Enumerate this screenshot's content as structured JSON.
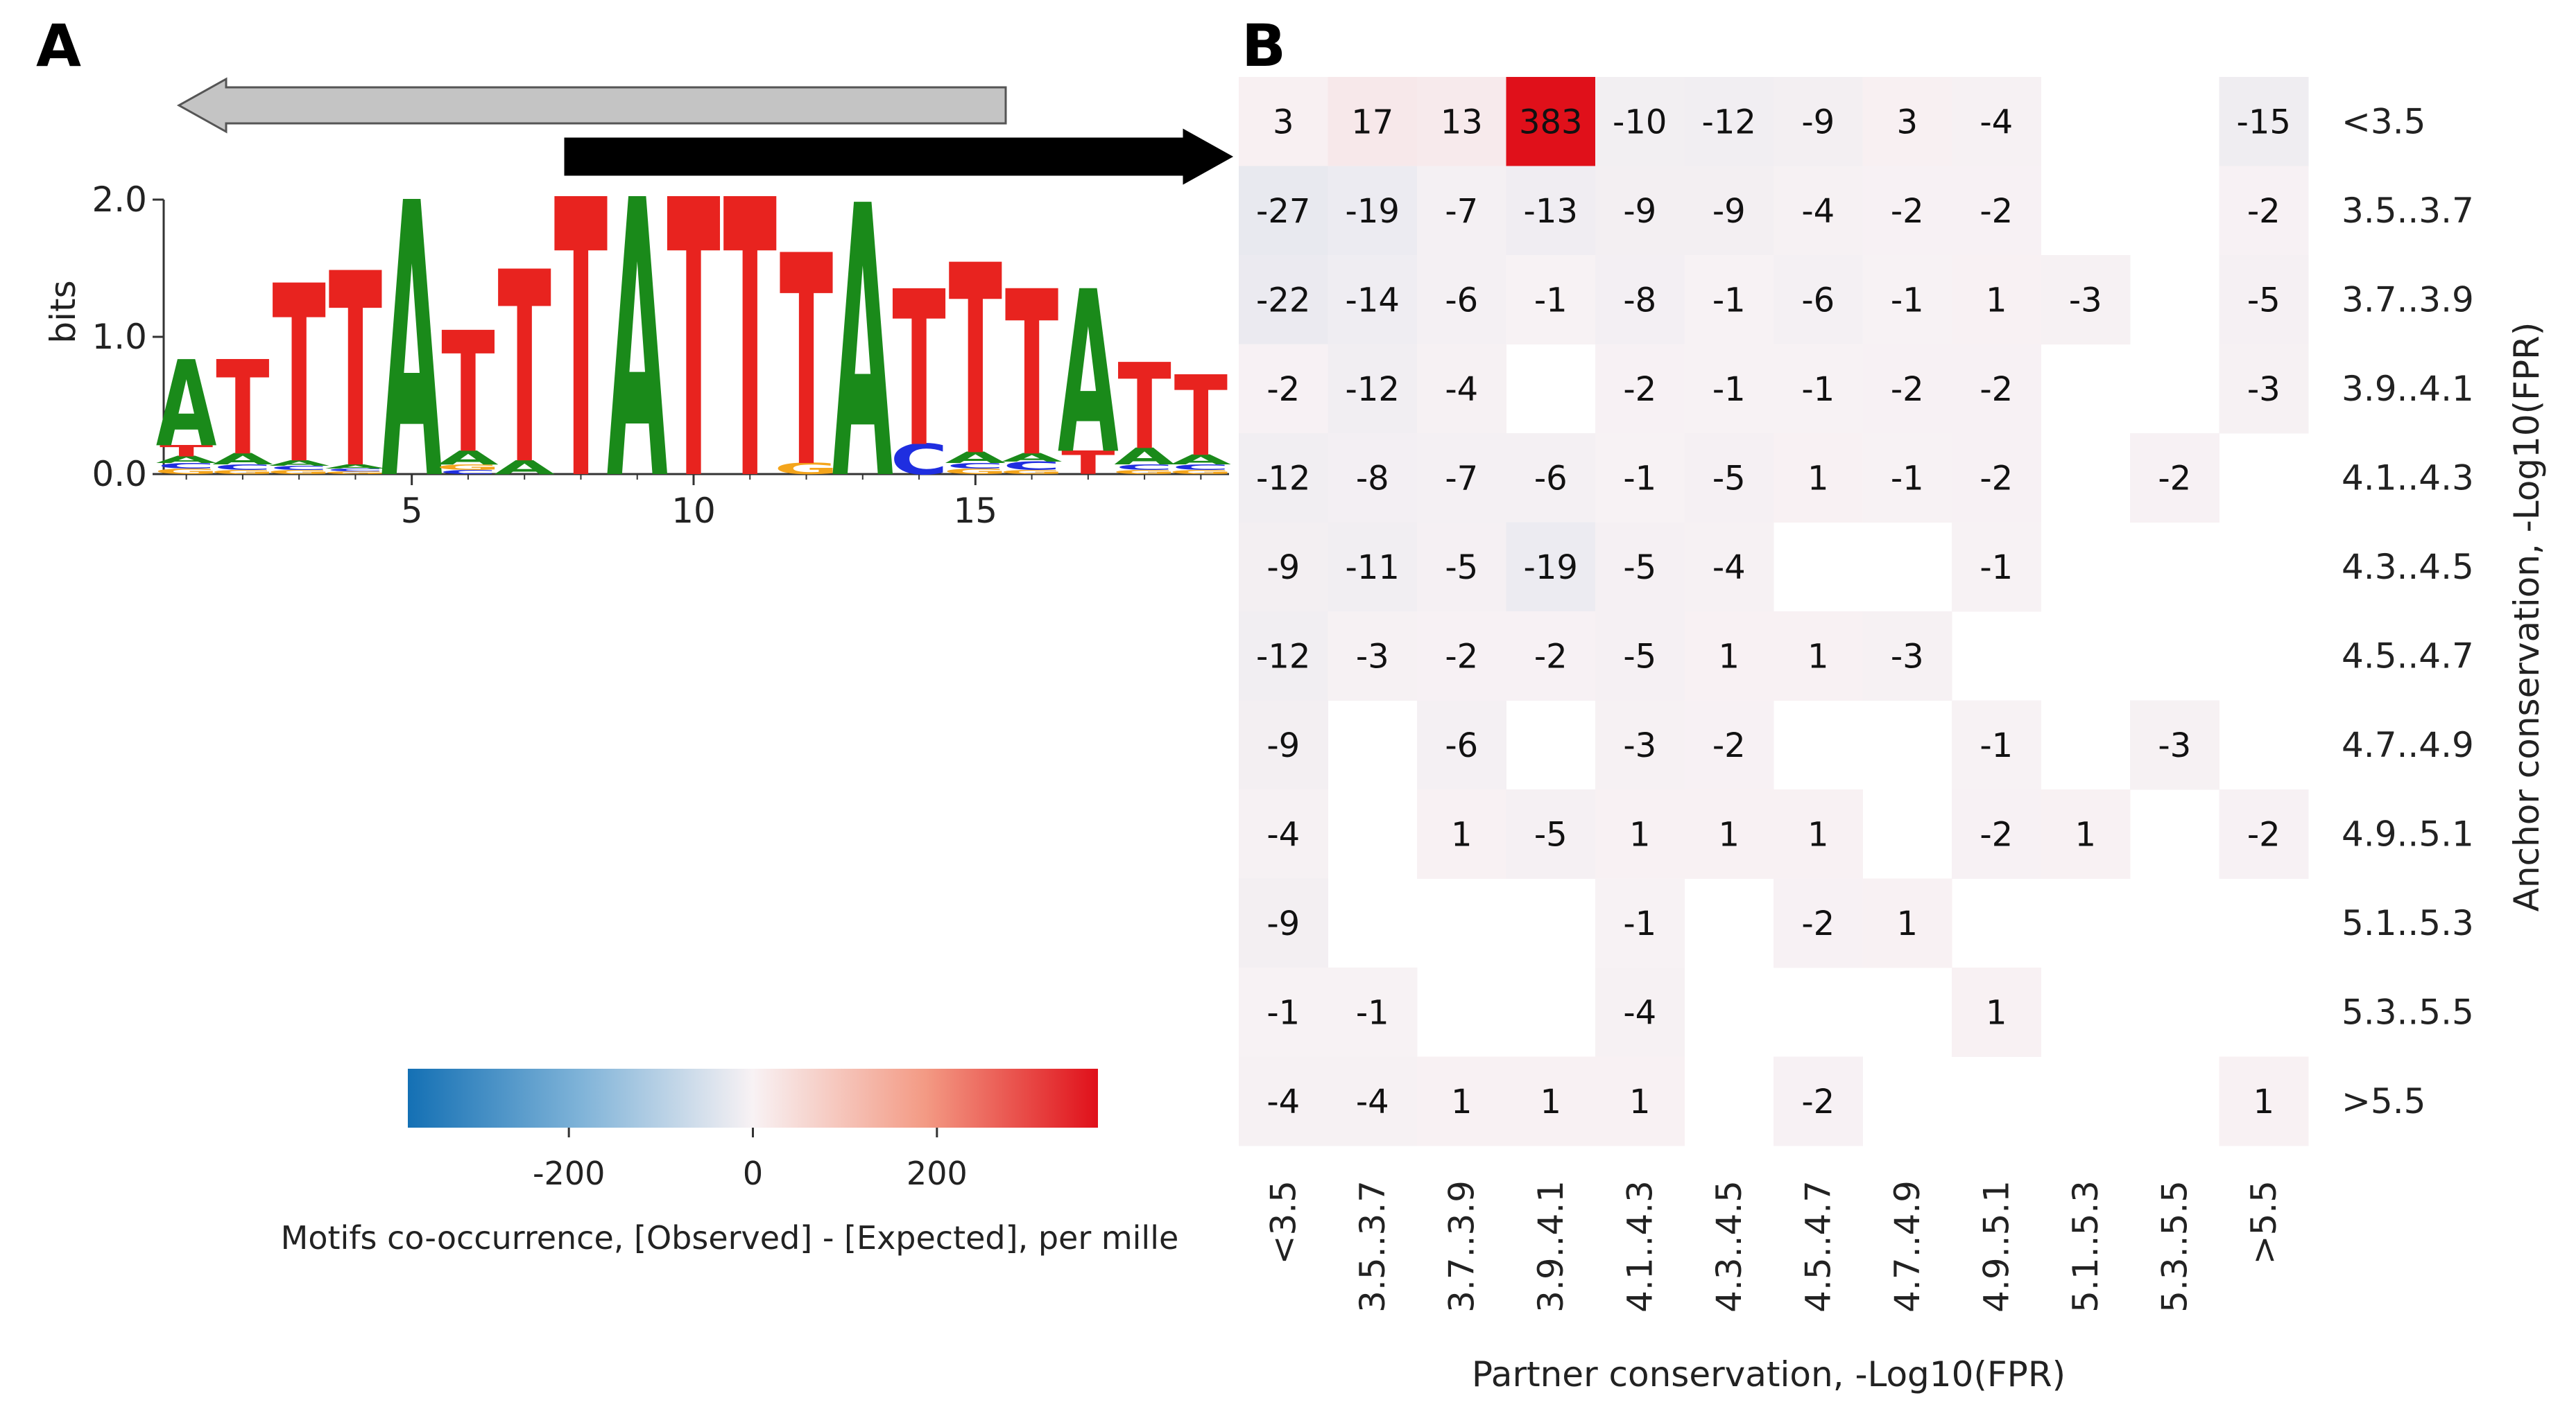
{
  "panel_labels": {
    "a": "A",
    "b": "B"
  },
  "chart_data": [
    {
      "type": "sequence-logo",
      "panel": "A",
      "ylabel": "bits",
      "ylim": [
        0,
        2.0
      ],
      "yticks": [
        "0.0",
        "1.0",
        "2.0"
      ],
      "xticks": [
        "5",
        "10",
        "15"
      ],
      "colors": {
        "A": "#1a8a1a",
        "T": "#e8231f",
        "C": "#1f2ee0",
        "G": "#f4a51c"
      },
      "arrows": [
        {
          "name": "reverse-arrow",
          "direction": "left",
          "color": "#c4c4c4",
          "from_pos": 16,
          "to_pos": 1
        },
        {
          "name": "forward-arrow",
          "direction": "right",
          "color": "#000000",
          "from_pos": 8,
          "to_pos": 19
        }
      ],
      "positions": [
        {
          "pos": 1,
          "stack": [
            [
              "G",
              0.04
            ],
            [
              "C",
              0.04
            ],
            [
              "A",
              0.05
            ],
            [
              "T",
              0.08
            ],
            [
              "A",
              0.62
            ]
          ]
        },
        {
          "pos": 2,
          "stack": [
            [
              "G",
              0.03
            ],
            [
              "C",
              0.04
            ],
            [
              "A",
              0.08
            ],
            [
              "T",
              0.68
            ]
          ]
        },
        {
          "pos": 3,
          "stack": [
            [
              "G",
              0.03
            ],
            [
              "C",
              0.03
            ],
            [
              "A",
              0.04
            ],
            [
              "T",
              1.28
            ]
          ]
        },
        {
          "pos": 4,
          "stack": [
            [
              "G",
              0.02
            ],
            [
              "C",
              0.02
            ],
            [
              "A",
              0.03
            ],
            [
              "T",
              1.4
            ]
          ]
        },
        {
          "pos": 5,
          "stack": [
            [
              "A",
              1.98
            ]
          ]
        },
        {
          "pos": 6,
          "stack": [
            [
              "C",
              0.03
            ],
            [
              "G",
              0.04
            ],
            [
              "A",
              0.1
            ],
            [
              "T",
              0.87
            ]
          ]
        },
        {
          "pos": 7,
          "stack": [
            [
              "A",
              0.1
            ],
            [
              "T",
              1.38
            ]
          ]
        },
        {
          "pos": 8,
          "stack": [
            [
              "T",
              2.0
            ]
          ]
        },
        {
          "pos": 9,
          "stack": [
            [
              "A",
              2.0
            ]
          ]
        },
        {
          "pos": 10,
          "stack": [
            [
              "T",
              2.0
            ]
          ]
        },
        {
          "pos": 11,
          "stack": [
            [
              "T",
              2.0
            ]
          ]
        },
        {
          "pos": 12,
          "stack": [
            [
              "G",
              0.08
            ],
            [
              "T",
              1.52
            ]
          ]
        },
        {
          "pos": 13,
          "stack": [
            [
              "A",
              1.96
            ]
          ]
        },
        {
          "pos": 14,
          "stack": [
            [
              "C",
              0.22
            ],
            [
              "T",
              1.12
            ]
          ]
        },
        {
          "pos": 15,
          "stack": [
            [
              "G",
              0.04
            ],
            [
              "C",
              0.04
            ],
            [
              "A",
              0.08
            ],
            [
              "T",
              1.37
            ]
          ]
        },
        {
          "pos": 16,
          "stack": [
            [
              "G",
              0.03
            ],
            [
              "C",
              0.06
            ],
            [
              "A",
              0.06
            ],
            [
              "T",
              1.19
            ]
          ]
        },
        {
          "pos": 17,
          "stack": [
            [
              "T",
              0.17
            ],
            [
              "A",
              1.17
            ]
          ]
        },
        {
          "pos": 18,
          "stack": [
            [
              "G",
              0.03
            ],
            [
              "C",
              0.04
            ],
            [
              "A",
              0.12
            ],
            [
              "T",
              0.62
            ]
          ]
        },
        {
          "pos": 19,
          "stack": [
            [
              "G",
              0.03
            ],
            [
              "C",
              0.04
            ],
            [
              "A",
              0.07
            ],
            [
              "T",
              0.58
            ]
          ]
        }
      ]
    },
    {
      "type": "heatmap",
      "panel": "B",
      "xlabel": "Partner conservation, -Log10(FPR)",
      "ylabel": "Anchor conservation, -Log10(FPR)",
      "col_labels": [
        "<3.5",
        "3.5..3.7",
        "3.7..3.9",
        "3.9..4.1",
        "4.1..4.3",
        "4.3..4.5",
        "4.5..4.7",
        "4.7..4.9",
        "4.9..5.1",
        "5.1..5.3",
        "5.3..5.5",
        ">5.5"
      ],
      "row_labels": [
        "<3.5",
        "3.5..3.7",
        "3.7..3.9",
        "3.9..4.1",
        "4.1..4.3",
        "4.3..4.5",
        "4.5..4.7",
        "4.7..4.9",
        "4.9..5.1",
        "5.1..5.3",
        "5.3..5.5",
        ">5.5"
      ],
      "values": [
        [
          3,
          17,
          13,
          383,
          -10,
          -12,
          -9,
          3,
          -4,
          null,
          null,
          -15
        ],
        [
          -27,
          -19,
          -7,
          -13,
          -9,
          -9,
          -4,
          -2,
          -2,
          null,
          null,
          -2
        ],
        [
          -22,
          -14,
          -6,
          -1,
          -8,
          -1,
          -6,
          -1,
          1,
          -3,
          null,
          -5
        ],
        [
          -2,
          -12,
          -4,
          null,
          -2,
          -1,
          -1,
          -2,
          -2,
          null,
          null,
          -3
        ],
        [
          -12,
          -8,
          -7,
          -6,
          -1,
          -5,
          1,
          -1,
          -2,
          null,
          -2,
          null
        ],
        [
          -9,
          -11,
          -5,
          -19,
          -5,
          -4,
          null,
          null,
          -1,
          null,
          null,
          null
        ],
        [
          -12,
          -3,
          -2,
          -2,
          -5,
          1,
          1,
          -3,
          null,
          null,
          null,
          null
        ],
        [
          -9,
          null,
          -6,
          null,
          -3,
          -2,
          null,
          null,
          -1,
          null,
          -3,
          null
        ],
        [
          -4,
          null,
          1,
          -5,
          1,
          1,
          1,
          null,
          -2,
          1,
          null,
          -2
        ],
        [
          -9,
          null,
          null,
          null,
          -1,
          null,
          -2,
          1,
          null,
          null,
          null,
          null
        ],
        [
          -1,
          -1,
          null,
          null,
          -4,
          null,
          null,
          null,
          1,
          null,
          null,
          null
        ],
        [
          -4,
          -4,
          1,
          1,
          1,
          null,
          -2,
          null,
          null,
          null,
          null,
          1
        ]
      ],
      "colorbar": {
        "label": "Motifs co-occurrence, [Observed] - [Expected], per mille",
        "range": [
          -375,
          375
        ],
        "ticks": [
          "-200",
          "0",
          "200"
        ],
        "tick_values": [
          -200,
          0,
          200
        ],
        "color_low": "#1470b4",
        "color_mid": "#f8f2f4",
        "color_high": "#e0101a"
      }
    }
  ]
}
